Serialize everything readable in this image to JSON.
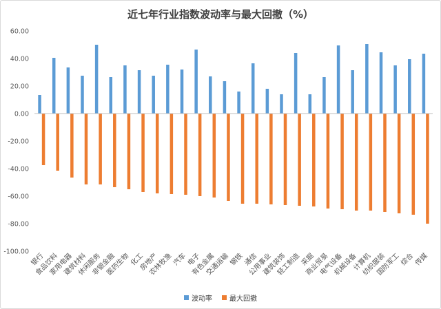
{
  "chart_data": {
    "type": "bar",
    "title": "近七年行业指数波动率与最大回撤（%）",
    "xlabel": "",
    "ylabel": "",
    "ylim": [
      -100,
      60
    ],
    "yticks": [
      60,
      40,
      20,
      0,
      -20,
      -40,
      -60,
      -80,
      -100
    ],
    "ytick_labels": [
      "60.00",
      "40.00",
      "20.00",
      "0.00",
      "-20.00",
      "-40.00",
      "-60.00",
      "-80.00",
      "-100.00"
    ],
    "grid": false,
    "legend_position": "bottom",
    "categories": [
      "银行",
      "食品饮料",
      "家用电器",
      "建筑材料",
      "休闲服务",
      "非银金融",
      "医药生物",
      "化工",
      "房地产",
      "农林牧渔",
      "汽车",
      "电子",
      "有色金属",
      "交通运输",
      "钢铁",
      "通信",
      "公用事业",
      "建筑装饰",
      "轻工制造",
      "采掘",
      "商业贸易",
      "电气设备",
      "机械设备",
      "计算机",
      "纺织服装",
      "国防军工",
      "综合",
      "传媒"
    ],
    "series": [
      {
        "name": "波动率",
        "color": "#5b9bd5",
        "values": [
          13.5,
          40.5,
          33.5,
          27.5,
          50.0,
          26.5,
          35.0,
          31.5,
          27.5,
          35.5,
          32.0,
          46.5,
          27.0,
          23.5,
          16.0,
          36.5,
          18.0,
          14.0,
          44.0,
          14.0,
          26.5,
          49.5,
          31.5,
          50.5,
          44.5,
          35.0,
          39.5,
          43.5
        ]
      },
      {
        "name": "最大回撤",
        "color": "#ed7d31",
        "values": [
          -37.5,
          -41.5,
          -46.5,
          -51.5,
          -51.5,
          -53.5,
          -55.0,
          -57.0,
          -58.0,
          -58.5,
          -59.0,
          -60.0,
          -61.0,
          -63.5,
          -65.5,
          -65.5,
          -66.0,
          -66.5,
          -67.0,
          -67.5,
          -69.0,
          -69.5,
          -70.5,
          -70.5,
          -71.5,
          -72.5,
          -73.5,
          -80.0
        ]
      }
    ]
  }
}
